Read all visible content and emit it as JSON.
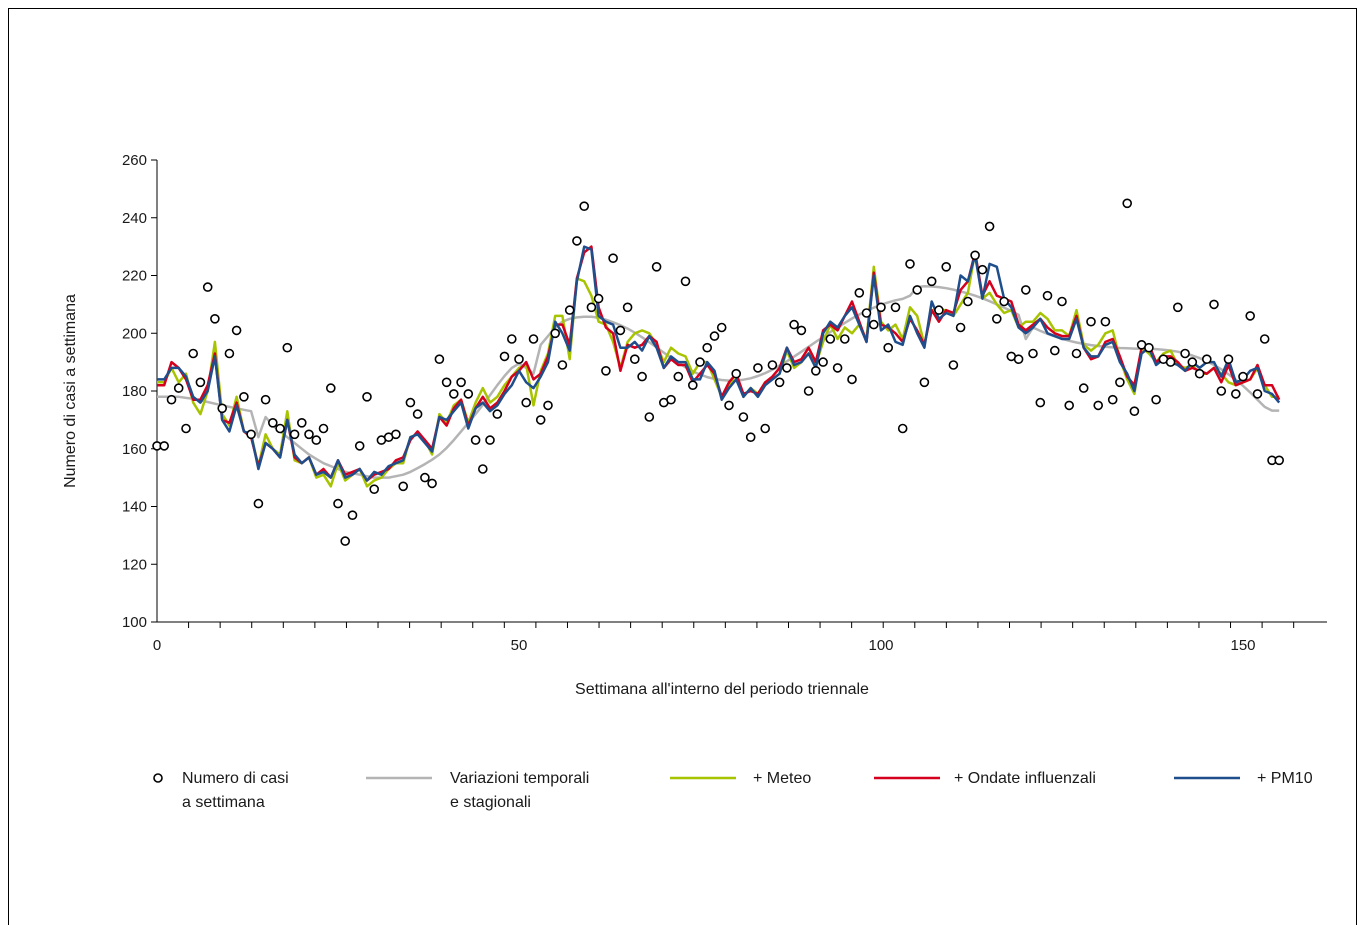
{
  "chart_data": {
    "type": "line",
    "title": "",
    "xlabel": "Settimana all'interno del periodo triennale",
    "ylabel": "Numero di casi a settimana",
    "xlim": [
      0,
      157
    ],
    "ylim": [
      100,
      260
    ],
    "x_ticks": [
      0,
      50,
      100,
      150
    ],
    "y_ticks": [
      100,
      120,
      140,
      160,
      180,
      200,
      220,
      240,
      260
    ],
    "grid": false,
    "legend_position": "bottom",
    "legend": {
      "observed": [
        "Numero di casi",
        "a settimana"
      ],
      "trend": [
        "Variazioni temporali",
        "e stagionali"
      ],
      "meteo": [
        "+ Meteo"
      ],
      "influenza": [
        "+ Ondate influenzali"
      ],
      "pm10": [
        "+ PM10"
      ]
    },
    "colors": {
      "observed": "#000000",
      "trend": "#b4b4b4",
      "meteo": "#a8c400",
      "influenza": "#d4001e",
      "pm10": "#1f4e8c",
      "axis": "#000000"
    },
    "observed": [
      161,
      161,
      177,
      181,
      167,
      193,
      183,
      216,
      205,
      174,
      193,
      201,
      178,
      165,
      141,
      177,
      169,
      167,
      195,
      165,
      169,
      165,
      163,
      167,
      181,
      141,
      128,
      137,
      161,
      178,
      146,
      163,
      164,
      165,
      147,
      176,
      172,
      150,
      148,
      191,
      183,
      179,
      183,
      179,
      163,
      153,
      163,
      172,
      192,
      198,
      191,
      176,
      198,
      170,
      175,
      200,
      189,
      208,
      232,
      244,
      209,
      212,
      187,
      226,
      201,
      209,
      191,
      185,
      171,
      223,
      176,
      177,
      185,
      218,
      182,
      190,
      195,
      199,
      202,
      175,
      186,
      171,
      164,
      188,
      167,
      189,
      183,
      188,
      203,
      201,
      180,
      187,
      190,
      198,
      188,
      198,
      184,
      214,
      207,
      203,
      209,
      195,
      209,
      167,
      224,
      215,
      183,
      218,
      208,
      223,
      189,
      202,
      211,
      227,
      222,
      237,
      205,
      211,
      192,
      191,
      215,
      193,
      176,
      213,
      194,
      211,
      175,
      193,
      181,
      204,
      175,
      204,
      177,
      183,
      245,
      173,
      196,
      195,
      177,
      191,
      190,
      209,
      193,
      190,
      186,
      191,
      210,
      180,
      191,
      179,
      185,
      206,
      179,
      198,
      156,
      156
    ],
    "series": [
      {
        "key": "trend",
        "values": [
          178,
          178,
          178,
          178,
          177.6,
          177.3,
          176.8,
          176.2,
          175.6,
          175,
          174.5,
          174,
          173.5,
          173,
          164,
          171,
          168,
          166,
          164,
          162,
          160,
          158,
          156.5,
          155,
          154,
          153,
          152,
          151.5,
          151,
          150.5,
          150,
          150,
          150,
          150.5,
          151,
          152,
          153.3,
          154.7,
          156.2,
          158,
          160.3,
          163,
          166,
          169,
          172,
          175.2,
          178.5,
          182,
          185.2,
          188,
          189.5,
          188,
          186,
          196,
          199,
          202,
          204,
          205,
          205.5,
          205.7,
          205.7,
          205.4,
          204.7,
          203.8,
          202.8,
          201.6,
          200.2,
          198.6,
          196.9,
          195.1,
          193.3,
          191.5,
          189.8,
          188.2,
          186.8,
          185.7,
          184.8,
          184.2,
          183.8,
          183.6,
          183.6,
          183.9,
          184.4,
          185.2,
          186.2,
          187.4,
          188.8,
          190.3,
          191.9,
          193.6,
          195.3,
          197,
          198.7,
          200.4,
          202,
          203.6,
          205.1,
          206.5,
          207.8,
          208.9,
          209.9,
          210.7,
          211.4,
          211.9,
          213,
          216,
          216.3,
          216.2,
          216,
          215.6,
          215.1,
          214.5,
          213.8,
          213,
          212.1,
          211.1,
          210,
          208.9,
          207.7,
          206.4,
          198,
          202,
          200.8,
          199.8,
          198.9,
          198.1,
          197.4,
          196.8,
          196.3,
          195.9,
          195.6,
          195.3,
          195.1,
          194.9,
          194.8,
          194.7,
          194.6,
          194.6,
          194.5,
          194.3,
          194,
          193.6,
          193,
          192.3,
          191.4,
          190.3,
          189,
          187.5,
          185.8,
          183.9,
          181.8,
          179.5,
          177,
          174.5,
          173.2,
          173.2
        ]
      },
      {
        "key": "meteo",
        "values": [
          183,
          183,
          188,
          183,
          186,
          176,
          172,
          180,
          197,
          172,
          168,
          178,
          166,
          165,
          154,
          165,
          160,
          158,
          173,
          156,
          155,
          157,
          150,
          151,
          147,
          155,
          149,
          151,
          153,
          147,
          149,
          150,
          153,
          155,
          155,
          164,
          165,
          163,
          158,
          172,
          169,
          175,
          177,
          169,
          176,
          181,
          176,
          178,
          182,
          185,
          188,
          189,
          175,
          187,
          193,
          206,
          206,
          191,
          219,
          218,
          213,
          204,
          203,
          197,
          188,
          197,
          200,
          201,
          200,
          196,
          190,
          195,
          193,
          192,
          186,
          190,
          190,
          184,
          178,
          182,
          186,
          178,
          181,
          179,
          183,
          184,
          186,
          194,
          188,
          190,
          193,
          189,
          197,
          203,
          198,
          202,
          200,
          203,
          198,
          223,
          204,
          201,
          203,
          198,
          209,
          206,
          196,
          208,
          208,
          208,
          206,
          210,
          214,
          228,
          212,
          214,
          210,
          207,
          208,
          202,
          204,
          204,
          207,
          205,
          201,
          201,
          199,
          208,
          196,
          194,
          196,
          200,
          201,
          191,
          184,
          179,
          195,
          193,
          190,
          193,
          194,
          189,
          188,
          189,
          186,
          186,
          188,
          186,
          183,
          182,
          183,
          184,
          188,
          182,
          178,
          178
        ]
      },
      {
        "key": "influenza",
        "values": [
          182,
          182,
          190,
          188,
          184,
          177,
          177,
          182,
          193,
          170,
          169,
          176,
          166,
          164,
          154,
          162,
          160,
          157,
          170,
          157,
          155,
          157,
          151,
          153,
          150,
          156,
          151,
          152,
          153,
          149,
          151,
          152,
          153,
          156,
          157,
          163,
          166,
          163,
          160,
          171,
          168,
          174,
          177,
          168,
          174,
          178,
          174,
          176,
          180,
          185,
          187,
          190,
          184,
          186,
          192,
          203,
          203,
          196,
          219,
          228,
          230,
          209,
          202,
          200,
          187,
          196,
          195,
          196,
          199,
          197,
          188,
          191,
          189,
          189,
          183,
          186,
          189,
          186,
          178,
          183,
          186,
          179,
          180,
          179,
          183,
          185,
          188,
          195,
          190,
          191,
          195,
          190,
          201,
          203,
          201,
          206,
          211,
          204,
          197,
          221,
          203,
          202,
          200,
          197,
          205,
          201,
          196,
          208,
          204,
          208,
          207,
          215,
          218,
          228,
          213,
          218,
          213,
          212,
          211,
          203,
          201,
          203,
          205,
          202,
          200,
          199,
          199,
          206,
          195,
          191,
          192,
          197,
          198,
          192,
          185,
          182,
          195,
          196,
          190,
          192,
          192,
          190,
          187,
          188,
          187,
          186,
          188,
          183,
          189,
          182,
          183,
          184,
          189,
          182,
          182,
          177
        ]
      },
      {
        "key": "pm10",
        "values": [
          184,
          184,
          188,
          188,
          185,
          178,
          176,
          180,
          192,
          170,
          166,
          175,
          166,
          165,
          153,
          162,
          160,
          157,
          170,
          158,
          155,
          157,
          151,
          152,
          150,
          156,
          150,
          151,
          153,
          149,
          152,
          151,
          154,
          155,
          156,
          164,
          165,
          162,
          159,
          171,
          170,
          173,
          176,
          167,
          174,
          176,
          173,
          175,
          179,
          182,
          187,
          183,
          181,
          185,
          190,
          204,
          200,
          194,
          218,
          230,
          229,
          206,
          204,
          203,
          195,
          195,
          197,
          194,
          199,
          195,
          188,
          192,
          190,
          190,
          184,
          184,
          190,
          187,
          177,
          181,
          184,
          178,
          181,
          178,
          182,
          184,
          186,
          195,
          189,
          190,
          193,
          188,
          200,
          204,
          202,
          206,
          209,
          203,
          197,
          220,
          201,
          203,
          197,
          196,
          206,
          200,
          195,
          211,
          205,
          207,
          206,
          220,
          218,
          227,
          212,
          224,
          223,
          212,
          209,
          202,
          200,
          202,
          205,
          200,
          199,
          198,
          198,
          205,
          195,
          192,
          192,
          196,
          197,
          190,
          186,
          180,
          193,
          195,
          189,
          191,
          190,
          189,
          187,
          190,
          188,
          190,
          190,
          185,
          191,
          183,
          184,
          187,
          188,
          180,
          179,
          176
        ]
      }
    ]
  }
}
